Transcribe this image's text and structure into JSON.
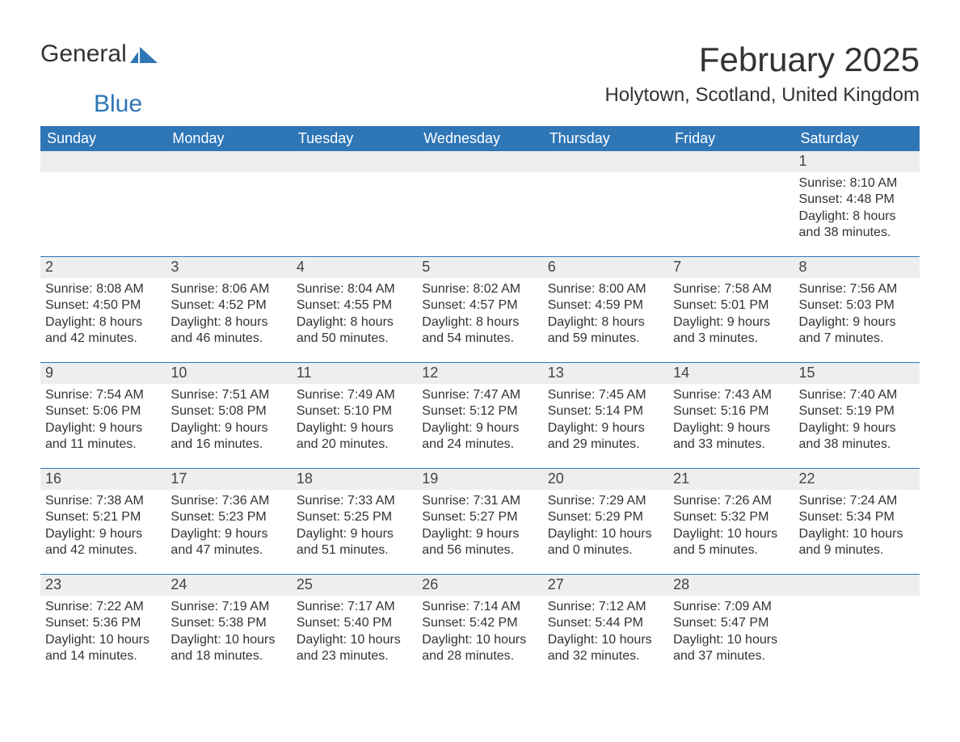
{
  "brand": {
    "general": "General",
    "blue": "Blue"
  },
  "colors": {
    "header_bg": "#2f76b7",
    "header_text": "#ffffff",
    "strip_bg": "#eeeeee",
    "row_border": "#2f76b7",
    "body_text": "#333333",
    "page_bg": "#ffffff"
  },
  "typography": {
    "month_title_pt": 42,
    "location_pt": 24,
    "dayhead_pt": 18,
    "daynum_pt": 18,
    "body_pt": 16,
    "font_family": "Segoe UI, Arial, sans-serif"
  },
  "title": "February 2025",
  "location": "Holytown, Scotland, United Kingdom",
  "dayheads": [
    "Sunday",
    "Monday",
    "Tuesday",
    "Wednesday",
    "Thursday",
    "Friday",
    "Saturday"
  ],
  "weeks": [
    [
      {
        "day": "",
        "lines": []
      },
      {
        "day": "",
        "lines": []
      },
      {
        "day": "",
        "lines": []
      },
      {
        "day": "",
        "lines": []
      },
      {
        "day": "",
        "lines": []
      },
      {
        "day": "",
        "lines": []
      },
      {
        "day": "1",
        "lines": [
          "Sunrise: 8:10 AM",
          "Sunset: 4:48 PM",
          "Daylight: 8 hours and 38 minutes."
        ]
      }
    ],
    [
      {
        "day": "2",
        "lines": [
          "Sunrise: 8:08 AM",
          "Sunset: 4:50 PM",
          "Daylight: 8 hours and 42 minutes."
        ]
      },
      {
        "day": "3",
        "lines": [
          "Sunrise: 8:06 AM",
          "Sunset: 4:52 PM",
          "Daylight: 8 hours and 46 minutes."
        ]
      },
      {
        "day": "4",
        "lines": [
          "Sunrise: 8:04 AM",
          "Sunset: 4:55 PM",
          "Daylight: 8 hours and 50 minutes."
        ]
      },
      {
        "day": "5",
        "lines": [
          "Sunrise: 8:02 AM",
          "Sunset: 4:57 PM",
          "Daylight: 8 hours and 54 minutes."
        ]
      },
      {
        "day": "6",
        "lines": [
          "Sunrise: 8:00 AM",
          "Sunset: 4:59 PM",
          "Daylight: 8 hours and 59 minutes."
        ]
      },
      {
        "day": "7",
        "lines": [
          "Sunrise: 7:58 AM",
          "Sunset: 5:01 PM",
          "Daylight: 9 hours and 3 minutes."
        ]
      },
      {
        "day": "8",
        "lines": [
          "Sunrise: 7:56 AM",
          "Sunset: 5:03 PM",
          "Daylight: 9 hours and 7 minutes."
        ]
      }
    ],
    [
      {
        "day": "9",
        "lines": [
          "Sunrise: 7:54 AM",
          "Sunset: 5:06 PM",
          "Daylight: 9 hours and 11 minutes."
        ]
      },
      {
        "day": "10",
        "lines": [
          "Sunrise: 7:51 AM",
          "Sunset: 5:08 PM",
          "Daylight: 9 hours and 16 minutes."
        ]
      },
      {
        "day": "11",
        "lines": [
          "Sunrise: 7:49 AM",
          "Sunset: 5:10 PM",
          "Daylight: 9 hours and 20 minutes."
        ]
      },
      {
        "day": "12",
        "lines": [
          "Sunrise: 7:47 AM",
          "Sunset: 5:12 PM",
          "Daylight: 9 hours and 24 minutes."
        ]
      },
      {
        "day": "13",
        "lines": [
          "Sunrise: 7:45 AM",
          "Sunset: 5:14 PM",
          "Daylight: 9 hours and 29 minutes."
        ]
      },
      {
        "day": "14",
        "lines": [
          "Sunrise: 7:43 AM",
          "Sunset: 5:16 PM",
          "Daylight: 9 hours and 33 minutes."
        ]
      },
      {
        "day": "15",
        "lines": [
          "Sunrise: 7:40 AM",
          "Sunset: 5:19 PM",
          "Daylight: 9 hours and 38 minutes."
        ]
      }
    ],
    [
      {
        "day": "16",
        "lines": [
          "Sunrise: 7:38 AM",
          "Sunset: 5:21 PM",
          "Daylight: 9 hours and 42 minutes."
        ]
      },
      {
        "day": "17",
        "lines": [
          "Sunrise: 7:36 AM",
          "Sunset: 5:23 PM",
          "Daylight: 9 hours and 47 minutes."
        ]
      },
      {
        "day": "18",
        "lines": [
          "Sunrise: 7:33 AM",
          "Sunset: 5:25 PM",
          "Daylight: 9 hours and 51 minutes."
        ]
      },
      {
        "day": "19",
        "lines": [
          "Sunrise: 7:31 AM",
          "Sunset: 5:27 PM",
          "Daylight: 9 hours and 56 minutes."
        ]
      },
      {
        "day": "20",
        "lines": [
          "Sunrise: 7:29 AM",
          "Sunset: 5:29 PM",
          "Daylight: 10 hours and 0 minutes."
        ]
      },
      {
        "day": "21",
        "lines": [
          "Sunrise: 7:26 AM",
          "Sunset: 5:32 PM",
          "Daylight: 10 hours and 5 minutes."
        ]
      },
      {
        "day": "22",
        "lines": [
          "Sunrise: 7:24 AM",
          "Sunset: 5:34 PM",
          "Daylight: 10 hours and 9 minutes."
        ]
      }
    ],
    [
      {
        "day": "23",
        "lines": [
          "Sunrise: 7:22 AM",
          "Sunset: 5:36 PM",
          "Daylight: 10 hours and 14 minutes."
        ]
      },
      {
        "day": "24",
        "lines": [
          "Sunrise: 7:19 AM",
          "Sunset: 5:38 PM",
          "Daylight: 10 hours and 18 minutes."
        ]
      },
      {
        "day": "25",
        "lines": [
          "Sunrise: 7:17 AM",
          "Sunset: 5:40 PM",
          "Daylight: 10 hours and 23 minutes."
        ]
      },
      {
        "day": "26",
        "lines": [
          "Sunrise: 7:14 AM",
          "Sunset: 5:42 PM",
          "Daylight: 10 hours and 28 minutes."
        ]
      },
      {
        "day": "27",
        "lines": [
          "Sunrise: 7:12 AM",
          "Sunset: 5:44 PM",
          "Daylight: 10 hours and 32 minutes."
        ]
      },
      {
        "day": "28",
        "lines": [
          "Sunrise: 7:09 AM",
          "Sunset: 5:47 PM",
          "Daylight: 10 hours and 37 minutes."
        ]
      },
      {
        "day": "",
        "lines": []
      }
    ]
  ]
}
